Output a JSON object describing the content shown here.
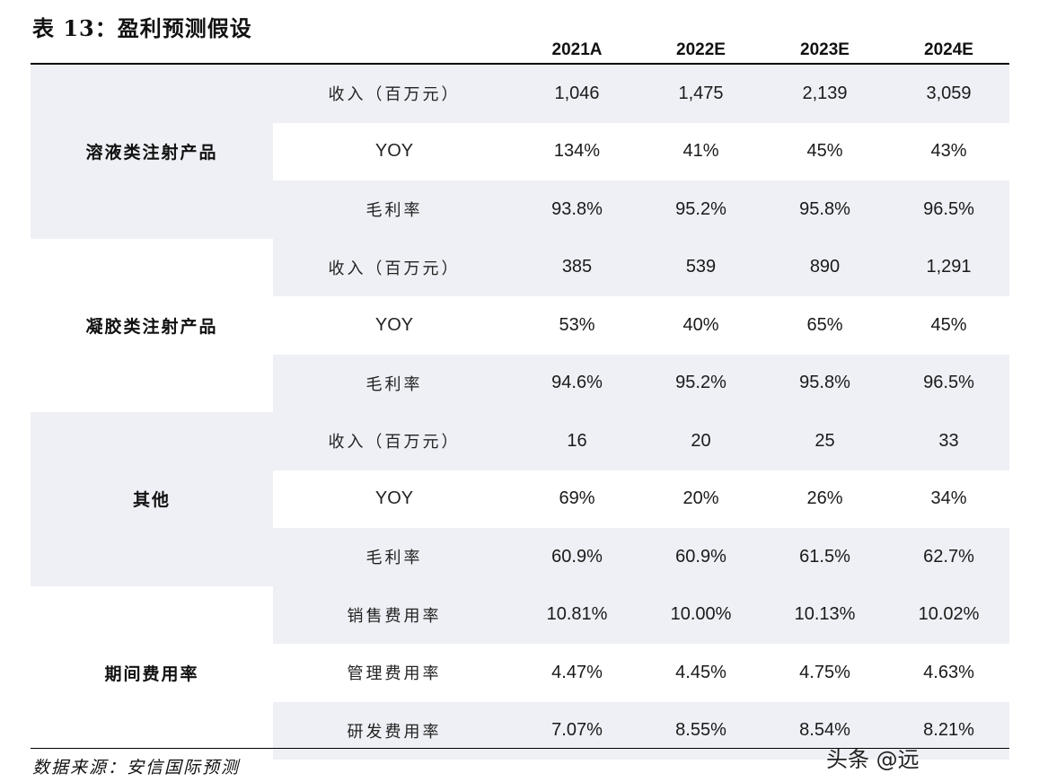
{
  "title": "表 13：盈利预测假设",
  "columns": [
    "2021A",
    "2022E",
    "2023E",
    "2024E"
  ],
  "groups": [
    {
      "name": "溶液类注射产品",
      "rows": [
        {
          "metric": "收入（百万元）",
          "values": [
            "1,046",
            "1,475",
            "2,139",
            "3,059"
          ]
        },
        {
          "metric": "YOY",
          "values": [
            "134%",
            "41%",
            "45%",
            "43%"
          ]
        },
        {
          "metric": "毛利率",
          "values": [
            "93.8%",
            "95.2%",
            "95.8%",
            "96.5%"
          ]
        }
      ]
    },
    {
      "name": "凝胶类注射产品",
      "rows": [
        {
          "metric": "收入（百万元）",
          "values": [
            "385",
            "539",
            "890",
            "1,291"
          ]
        },
        {
          "metric": "YOY",
          "values": [
            "53%",
            "40%",
            "65%",
            "45%"
          ]
        },
        {
          "metric": "毛利率",
          "values": [
            "94.6%",
            "95.2%",
            "95.8%",
            "96.5%"
          ]
        }
      ]
    },
    {
      "name": "其他",
      "rows": [
        {
          "metric": "收入（百万元）",
          "values": [
            "16",
            "20",
            "25",
            "33"
          ]
        },
        {
          "metric": "YOY",
          "values": [
            "69%",
            "20%",
            "26%",
            "34%"
          ]
        },
        {
          "metric": "毛利率",
          "values": [
            "60.9%",
            "60.9%",
            "61.5%",
            "62.7%"
          ]
        }
      ]
    },
    {
      "name": "期间费用率",
      "rows": [
        {
          "metric": "销售费用率",
          "values": [
            "10.81%",
            "10.00%",
            "10.13%",
            "10.02%"
          ]
        },
        {
          "metric": "管理费用率",
          "values": [
            "4.47%",
            "4.45%",
            "4.75%",
            "4.63%"
          ]
        },
        {
          "metric": "研发费用率",
          "values": [
            "7.07%",
            "8.55%",
            "8.54%",
            "8.21%"
          ]
        }
      ]
    }
  ],
  "source": "数据来源：安信国际预测",
  "watermark": "头条 @远"
}
